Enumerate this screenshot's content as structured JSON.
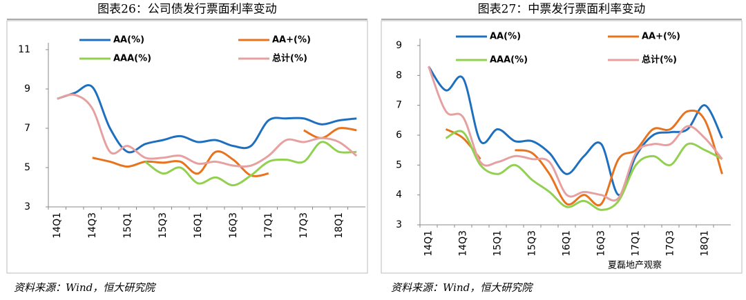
{
  "chart_data": [
    {
      "type": "line",
      "title": "图表26：公司债发行票面利率变动",
      "source": "资料来源：Wind，恒大研究院",
      "categories": [
        "14Q1",
        null,
        "14Q3",
        null,
        "15Q1",
        null,
        "15Q3",
        null,
        "16Q1",
        null,
        "16Q3",
        null,
        "17Q1",
        null,
        "17Q3",
        null,
        "18Q1",
        null
      ],
      "ylim": [
        3,
        11
      ],
      "yticks": [
        3,
        5,
        7,
        9,
        11
      ],
      "series": [
        {
          "name": "AA(%)",
          "color": "#1f6fbf",
          "values": [
            8.5,
            8.8,
            9.1,
            7.0,
            5.8,
            6.2,
            6.4,
            6.6,
            6.3,
            6.4,
            6.1,
            6.1,
            7.4,
            7.5,
            7.5,
            7.2,
            7.4,
            7.5
          ]
        },
        {
          "name": "AA+(%)",
          "color": "#e8731e",
          "values": [
            null,
            null,
            5.5,
            5.3,
            5.05,
            5.3,
            5.25,
            5.3,
            4.7,
            5.8,
            5.4,
            4.6,
            4.7,
            null,
            6.9,
            6.5,
            7.0,
            6.9
          ]
        },
        {
          "name": "AAA(%)",
          "color": "#92d050",
          "values": [
            null,
            null,
            null,
            null,
            null,
            5.3,
            4.7,
            5.0,
            4.2,
            4.5,
            4.1,
            4.6,
            5.3,
            5.4,
            5.3,
            6.3,
            5.8,
            5.8
          ]
        },
        {
          "name": "总计(%)",
          "color": "#e6a0a0",
          "values": [
            8.5,
            8.7,
            8.0,
            5.8,
            6.1,
            5.5,
            5.5,
            5.6,
            5.2,
            5.3,
            5.1,
            5.1,
            5.6,
            6.4,
            6.3,
            6.5,
            6.3,
            5.6
          ]
        }
      ]
    },
    {
      "type": "line",
      "title": "图表27：中票发行票面利率变动",
      "source": "资料来源：Wind，恒大研究院",
      "categories": [
        "14Q1",
        null,
        "14Q3",
        null,
        "15Q1",
        null,
        "15Q3",
        null,
        "16Q1",
        null,
        "16Q3",
        null,
        "17Q1",
        null,
        "17Q3",
        null,
        "18Q1",
        null
      ],
      "ylim": [
        3,
        9
      ],
      "yticks": [
        3,
        4,
        5,
        6,
        7,
        8,
        9
      ],
      "series": [
        {
          "name": "AA(%)",
          "color": "#1f6fbf",
          "values": [
            8.3,
            7.5,
            7.9,
            5.8,
            6.2,
            5.8,
            5.8,
            5.4,
            4.7,
            5.3,
            5.7,
            4.0,
            5.3,
            6.0,
            6.1,
            6.2,
            7.0,
            5.9
          ]
        },
        {
          "name": "AA+(%)",
          "color": "#e8731e",
          "values": [
            null,
            6.2,
            5.9,
            5.2,
            null,
            5.5,
            5.4,
            4.7,
            3.7,
            4.0,
            3.7,
            5.2,
            5.5,
            6.2,
            6.2,
            6.8,
            6.5,
            4.7
          ]
        },
        {
          "name": "AAA(%)",
          "color": "#92d050",
          "values": [
            null,
            5.9,
            6.1,
            5.0,
            4.7,
            5.0,
            4.5,
            4.1,
            3.6,
            3.8,
            3.5,
            3.8,
            5.0,
            5.3,
            5.0,
            5.7,
            5.5,
            5.2
          ]
        },
        {
          "name": "总计(%)",
          "color": "#e6a0a0",
          "values": [
            8.3,
            6.8,
            6.6,
            5.1,
            5.1,
            5.3,
            5.2,
            5.1,
            4.0,
            4.1,
            4.0,
            3.9,
            5.4,
            5.7,
            5.7,
            6.3,
            5.9,
            5.2
          ]
        }
      ]
    }
  ],
  "watermark": "夏磊地产观察"
}
